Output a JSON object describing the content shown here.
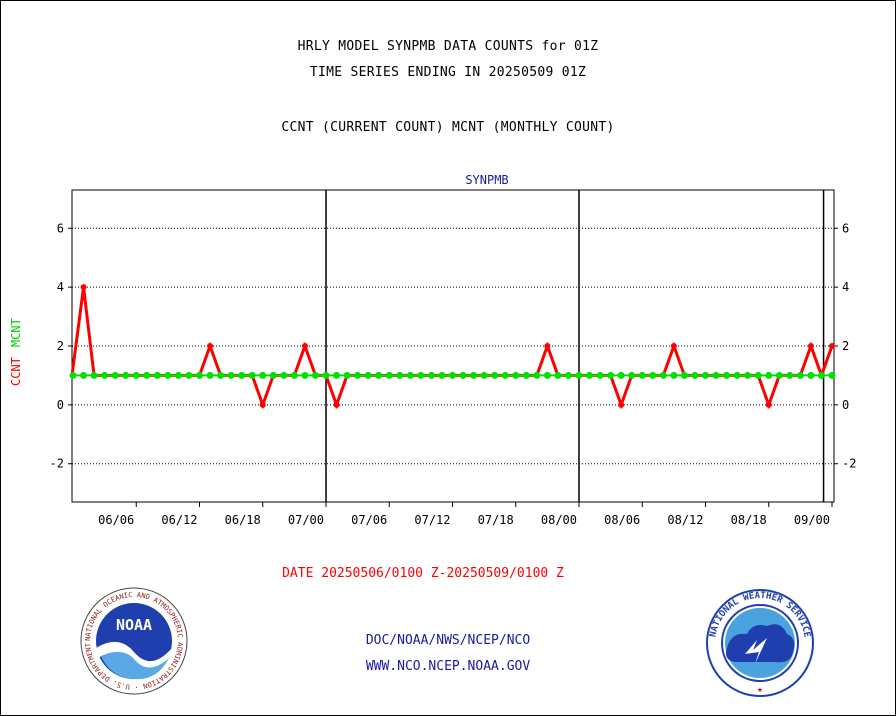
{
  "header": {
    "line1": "HRLY MODEL SYNPMB DATA COUNTS for 01Z",
    "line2": "TIME SERIES ENDING IN 20250509 01Z",
    "line3": "CCNT (CURRENT COUNT) MCNT (MONTHLY COUNT)"
  },
  "chart_data": {
    "type": "line",
    "title": "SYNPMB",
    "ylabel_ccnt": "CCNT",
    "ylabel_mcnt": "MCNT",
    "xlabel": "DATE 20250506/0100 Z-20250509/0100 Z",
    "ylim": [
      -3.3,
      7.3
    ],
    "yticks": [
      -2,
      0,
      2,
      4,
      6
    ],
    "ytick_labels": [
      "-2",
      "0",
      "2",
      "4",
      "6"
    ],
    "xlim": [
      0,
      72
    ],
    "xticks": [
      {
        "x": 6,
        "label": "06/06"
      },
      {
        "x": 12,
        "label": "06/12"
      },
      {
        "x": 18,
        "label": "06/18"
      },
      {
        "x": 24,
        "label": "07/00"
      },
      {
        "x": 30,
        "label": "07/06"
      },
      {
        "x": 36,
        "label": "07/12"
      },
      {
        "x": 42,
        "label": "07/18"
      },
      {
        "x": 48,
        "label": "08/00"
      },
      {
        "x": 54,
        "label": "08/06"
      },
      {
        "x": 60,
        "label": "08/12"
      },
      {
        "x": 66,
        "label": "08/18"
      },
      {
        "x": 72,
        "label": "09/00"
      }
    ],
    "day_lines": [
      24,
      48,
      71.2
    ],
    "grid": true,
    "series": [
      {
        "name": "CCNT",
        "color": "#ff0000",
        "x": [
          1,
          2,
          3,
          4,
          5,
          6,
          7,
          8,
          9,
          10,
          11,
          12,
          13,
          14,
          15,
          16,
          17,
          18,
          19,
          20,
          21,
          22,
          23,
          24,
          25,
          26,
          27,
          28,
          29,
          30,
          31,
          32,
          33,
          34,
          35,
          36,
          37,
          38,
          39,
          40,
          41,
          42,
          43,
          44,
          45,
          46,
          47,
          48,
          49,
          50,
          51,
          52,
          53,
          54,
          55,
          56,
          57,
          58,
          59,
          60,
          61,
          62,
          63,
          64,
          65,
          66,
          67,
          68,
          69,
          70,
          71,
          72
        ],
        "values": [
          4,
          1,
          1,
          1,
          1,
          1,
          1,
          1,
          1,
          1,
          1,
          1,
          2,
          1,
          1,
          1,
          1,
          0,
          1,
          1,
          1,
          2,
          1,
          1,
          0,
          1,
          1,
          1,
          1,
          1,
          1,
          1,
          1,
          1,
          1,
          1,
          1,
          1,
          1,
          1,
          1,
          1,
          1,
          1,
          2,
          1,
          1,
          1,
          1,
          1,
          1,
          0,
          1,
          1,
          1,
          1,
          2,
          1,
          1,
          1,
          1,
          1,
          1,
          1,
          1,
          0,
          1,
          1,
          1,
          2,
          1,
          2
        ]
      },
      {
        "name": "MCNT",
        "color": "#00e000",
        "x": [
          0,
          1,
          2,
          3,
          4,
          5,
          6,
          7,
          8,
          9,
          10,
          11,
          12,
          13,
          14,
          15,
          16,
          17,
          18,
          19,
          20,
          21,
          22,
          23,
          24,
          25,
          26,
          27,
          28,
          29,
          30,
          31,
          32,
          33,
          34,
          35,
          36,
          37,
          38,
          39,
          40,
          41,
          42,
          43,
          44,
          45,
          46,
          47,
          48,
          49,
          50,
          51,
          52,
          53,
          54,
          55,
          56,
          57,
          58,
          59,
          60,
          61,
          62,
          63,
          64,
          65,
          66,
          67,
          68,
          69,
          70,
          71,
          72
        ],
        "values": [
          1,
          1,
          1,
          1,
          1,
          1,
          1,
          1,
          1,
          1,
          1,
          1,
          1,
          1,
          1,
          1,
          1,
          1,
          1,
          1,
          1,
          1,
          1,
          1,
          1,
          1,
          1,
          1,
          1,
          1,
          1,
          1,
          1,
          1,
          1,
          1,
          1,
          1,
          1,
          1,
          1,
          1,
          1,
          1,
          1,
          1,
          1,
          1,
          1,
          1,
          1,
          1,
          1,
          1,
          1,
          1,
          1,
          1,
          1,
          1,
          1,
          1,
          1,
          1,
          1,
          1,
          1,
          1,
          1,
          1,
          1,
          1,
          1
        ]
      }
    ]
  },
  "footer": {
    "line1": "DOC/NOAA/NWS/NCEP/NCO",
    "line2": "WWW.NCO.NCEP.NOAA.GOV"
  },
  "logos": {
    "noaa_text": "NOAA",
    "noaa_ring": "NATIONAL OCEANIC AND ATMOSPHERIC ADMINISTRATION · U.S. DEPARTMENT OF COMMERCE ·",
    "nws_ring": "NATIONAL WEATHER SERVICE"
  }
}
